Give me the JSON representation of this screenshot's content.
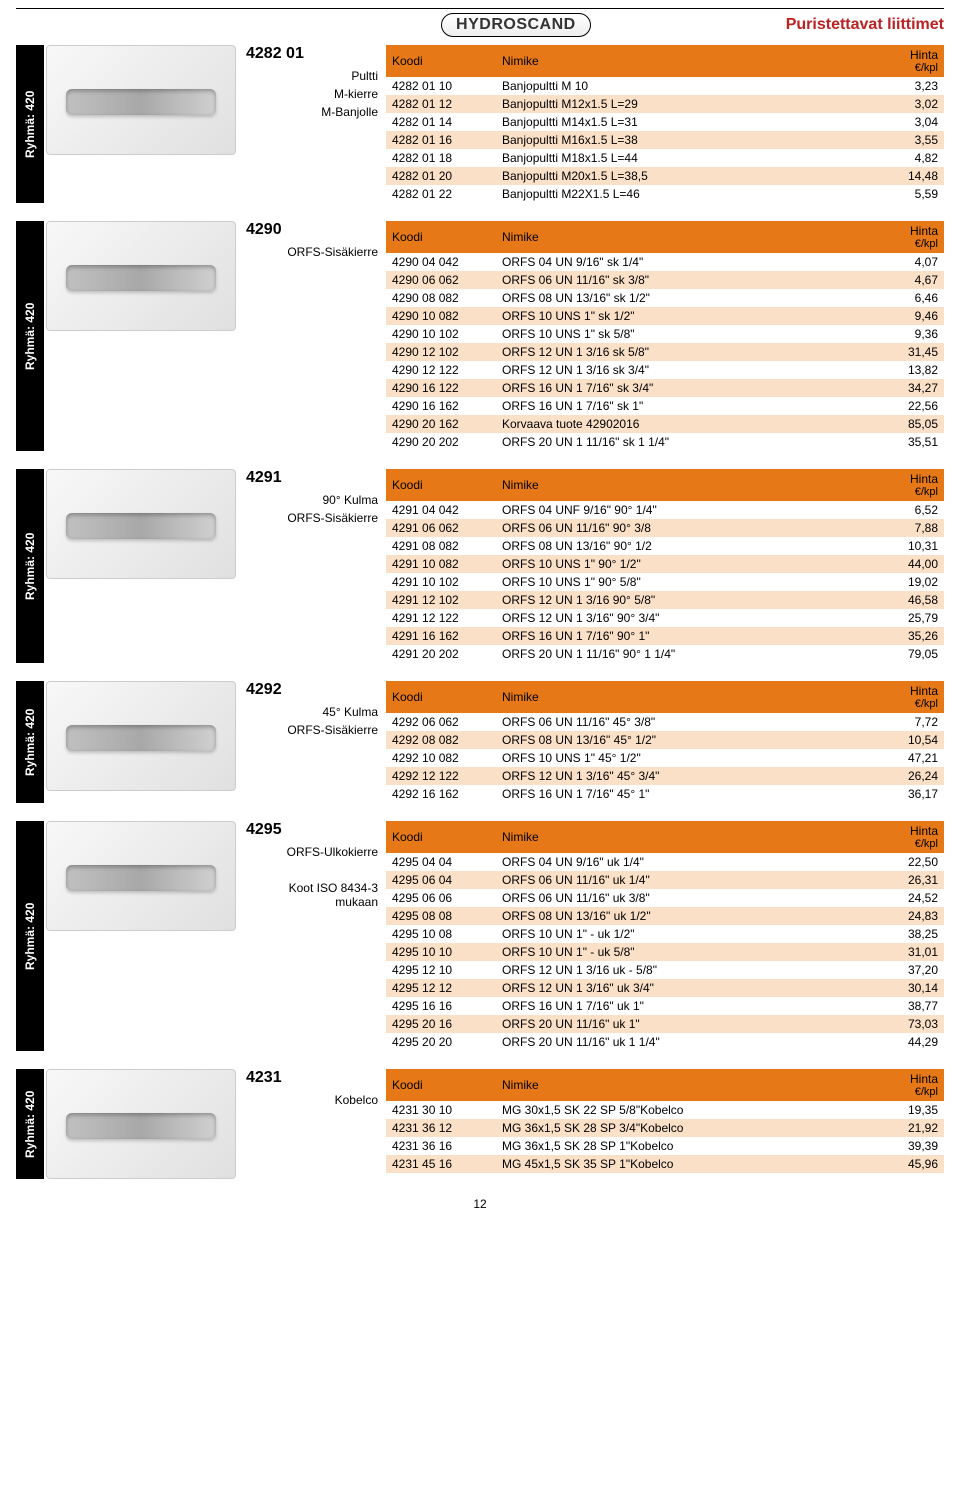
{
  "page_title": "Puristettavat liittimet",
  "logo_text": "HYDROSCAND",
  "group_label": "Ryhmä: 420",
  "header_koodi": "Koodi",
  "header_nimike": "Nimike",
  "header_hinta": "Hinta",
  "header_unit": "€/kpl",
  "page_number": "12",
  "sections": [
    {
      "code": "4282 01",
      "meta": [
        "Pultti",
        "M-kierre",
        "M-Banjolle"
      ],
      "rows": [
        {
          "k": "4282 01 10",
          "n": "Banjopultti M 10",
          "p": "3,23",
          "alt": false
        },
        {
          "k": "4282 01 12",
          "n": "Banjopultti M12x1.5 L=29",
          "p": "3,02",
          "alt": true
        },
        {
          "k": "4282 01 14",
          "n": "Banjopultti M14x1.5 L=31",
          "p": "3,04",
          "alt": false
        },
        {
          "k": "4282 01 16",
          "n": "Banjopultti M16x1.5 L=38",
          "p": "3,55",
          "alt": true
        },
        {
          "k": "4282 01 18",
          "n": "Banjopultti M18x1.5 L=44",
          "p": "4,82",
          "alt": false
        },
        {
          "k": "4282 01 20",
          "n": "Banjopultti M20x1.5 L=38,5",
          "p": "14,48",
          "alt": true
        },
        {
          "k": "4282 01 22",
          "n": "Banjopultti M22X1.5 L=46",
          "p": "5,59",
          "alt": false
        }
      ]
    },
    {
      "code": "4290",
      "meta": [
        "ORFS-Sisäkierre"
      ],
      "rows": [
        {
          "k": "4290 04 042",
          "n": "ORFS 04 UN 9/16\" sk 1/4\"",
          "p": "4,07",
          "alt": false
        },
        {
          "k": "4290 06 062",
          "n": "ORFS 06 UN 11/16\" sk 3/8\"",
          "p": "4,67",
          "alt": true
        },
        {
          "k": "4290 08 082",
          "n": "ORFS 08 UN 13/16\" sk 1/2\"",
          "p": "6,46",
          "alt": false
        },
        {
          "k": "4290 10 082",
          "n": "ORFS 10 UNS 1\" sk 1/2\"",
          "p": "9,46",
          "alt": true
        },
        {
          "k": "4290 10 102",
          "n": "ORFS 10 UNS 1\" sk 5/8\"",
          "p": "9,36",
          "alt": false
        },
        {
          "k": "4290 12 102",
          "n": "ORFS 12 UN 1 3/16 sk 5/8\"",
          "p": "31,45",
          "alt": true
        },
        {
          "k": "4290 12 122",
          "n": "ORFS 12 UN 1 3/16 sk 3/4\"",
          "p": "13,82",
          "alt": false
        },
        {
          "k": "4290 16 122",
          "n": "ORFS 16 UN 1 7/16\" sk 3/4\"",
          "p": "34,27",
          "alt": true
        },
        {
          "k": "4290 16 162",
          "n": "ORFS 16 UN 1 7/16\" sk 1\"",
          "p": "22,56",
          "alt": false
        },
        {
          "k": "4290 20 162",
          "n": "Korvaava tuote 42902016",
          "p": "85,05",
          "alt": true
        },
        {
          "k": "4290 20 202",
          "n": "ORFS 20 UN 1 11/16\" sk 1 1/4\"",
          "p": "35,51",
          "alt": false
        }
      ]
    },
    {
      "code": "4291",
      "meta": [
        "90° Kulma",
        "ORFS-Sisäkierre"
      ],
      "rows": [
        {
          "k": "4291 04 042",
          "n": "ORFS 04 UNF 9/16\" 90° 1/4\"",
          "p": "6,52",
          "alt": false
        },
        {
          "k": "4291 06 062",
          "n": "ORFS 06 UN 11/16\" 90° 3/8",
          "p": "7,88",
          "alt": true
        },
        {
          "k": "4291 08 082",
          "n": "ORFS 08 UN 13/16\" 90° 1/2",
          "p": "10,31",
          "alt": false
        },
        {
          "k": "4291 10 082",
          "n": "ORFS 10 UNS 1\" 90° 1/2\"",
          "p": "44,00",
          "alt": true
        },
        {
          "k": "4291 10 102",
          "n": "ORFS 10 UNS 1\" 90° 5/8\"",
          "p": "19,02",
          "alt": false
        },
        {
          "k": "4291 12 102",
          "n": "ORFS 12 UN 1 3/16 90° 5/8\"",
          "p": "46,58",
          "alt": true
        },
        {
          "k": "4291 12 122",
          "n": "ORFS 12 UN 1 3/16\" 90° 3/4\"",
          "p": "25,79",
          "alt": false
        },
        {
          "k": "4291 16 162",
          "n": "ORFS 16 UN 1 7/16\" 90° 1\"",
          "p": "35,26",
          "alt": true
        },
        {
          "k": "4291 20 202",
          "n": "ORFS 20 UN 1 11/16\" 90° 1 1/4\"",
          "p": "79,05",
          "alt": false
        }
      ]
    },
    {
      "code": "4292",
      "meta": [
        "45° Kulma",
        "ORFS-Sisäkierre"
      ],
      "rows": [
        {
          "k": "4292 06 062",
          "n": "ORFS 06 UN 11/16\" 45° 3/8\"",
          "p": "7,72",
          "alt": false
        },
        {
          "k": "4292 08 082",
          "n": "ORFS 08 UN 13/16\" 45° 1/2\"",
          "p": "10,54",
          "alt": true
        },
        {
          "k": "4292 10 082",
          "n": "ORFS 10 UNS 1\" 45° 1/2\"",
          "p": "47,21",
          "alt": false
        },
        {
          "k": "4292 12 122",
          "n": "ORFS 12 UN 1 3/16\" 45° 3/4\"",
          "p": "26,24",
          "alt": true
        },
        {
          "k": "4292 16 162",
          "n": "ORFS 16 UN 1 7/16\" 45° 1\"",
          "p": "36,17",
          "alt": false
        }
      ]
    },
    {
      "code": "4295",
      "meta": [
        "ORFS-Ulkokierre",
        "",
        "Koot ISO 8434-3 mukaan"
      ],
      "rows": [
        {
          "k": "4295 04 04",
          "n": "ORFS 04 UN 9/16\" uk 1/4\"",
          "p": "22,50",
          "alt": false
        },
        {
          "k": "4295 06 04",
          "n": "ORFS 06 UN 11/16\" uk  1/4\"",
          "p": "26,31",
          "alt": true
        },
        {
          "k": "4295 06 06",
          "n": "ORFS 06 UN 11/16\" uk  3/8\"",
          "p": "24,52",
          "alt": false
        },
        {
          "k": "4295 08 08",
          "n": "ORFS 08 UN 13/16\" uk 1/2\"",
          "p": "24,83",
          "alt": true
        },
        {
          "k": "4295 10 08",
          "n": "ORFS 10 UN 1\" - uk 1/2\"",
          "p": "38,25",
          "alt": false
        },
        {
          "k": "4295 10 10",
          "n": "ORFS 10 UN 1\" - uk 5/8\"",
          "p": "31,01",
          "alt": true
        },
        {
          "k": "4295 12 10",
          "n": "ORFS 12 UN 1 3/16 uk - 5/8\"",
          "p": "37,20",
          "alt": false
        },
        {
          "k": "4295 12 12",
          "n": "ORFS 12 UN 1 3/16\" uk 3/4\"",
          "p": "30,14",
          "alt": true
        },
        {
          "k": "4295 16 16",
          "n": "ORFS 16 UN  1 7/16\" uk 1\"",
          "p": "38,77",
          "alt": false
        },
        {
          "k": "4295 20 16",
          "n": "ORFS 20 UN  11/16\" uk 1\"",
          "p": "73,03",
          "alt": true
        },
        {
          "k": "4295 20 20",
          "n": "ORFS 20 UN  11/16\" uk 1 1/4\"",
          "p": "44,29",
          "alt": false
        }
      ]
    },
    {
      "code": "4231",
      "meta": [
        "Kobelco"
      ],
      "rows": [
        {
          "k": "4231 30 10",
          "n": "MG 30x1,5 SK 22 SP 5/8\"Kobelco",
          "p": "19,35",
          "alt": false
        },
        {
          "k": "4231 36 12",
          "n": "MG 36x1,5 SK 28 SP 3/4\"Kobelco",
          "p": "21,92",
          "alt": true
        },
        {
          "k": "4231 36 16",
          "n": "MG 36x1,5 SK 28 SP 1\"Kobelco",
          "p": "39,39",
          "alt": false
        },
        {
          "k": "4231 45 16",
          "n": "MG 45x1,5 SK 35 SP 1\"Kobelco",
          "p": "45,96",
          "alt": true
        }
      ]
    }
  ]
}
